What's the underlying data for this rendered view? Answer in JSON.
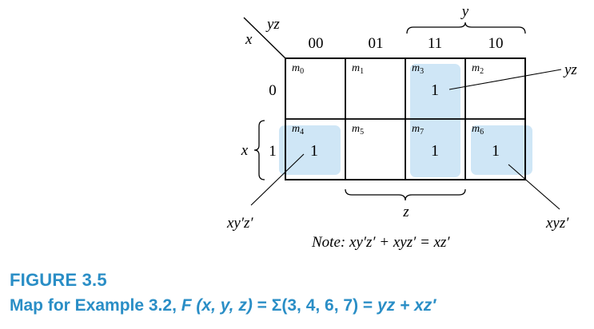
{
  "kmap": {
    "row_var": "x",
    "col_vars": "yz",
    "col_headers": [
      "00",
      "01",
      "11",
      "10"
    ],
    "row_headers": [
      "0",
      "1"
    ],
    "cells": [
      [
        {
          "minterm_main": "m",
          "minterm_sub": "0",
          "value": ""
        },
        {
          "minterm_main": "m",
          "minterm_sub": "1",
          "value": ""
        },
        {
          "minterm_main": "m",
          "minterm_sub": "3",
          "value": "1"
        },
        {
          "minterm_main": "m",
          "minterm_sub": "2",
          "value": ""
        }
      ],
      [
        {
          "minterm_main": "m",
          "minterm_sub": "4",
          "value": "1"
        },
        {
          "minterm_main": "m",
          "minterm_sub": "5",
          "value": ""
        },
        {
          "minterm_main": "m",
          "minterm_sub": "7",
          "value": "1"
        },
        {
          "minterm_main": "m",
          "minterm_sub": "6",
          "value": "1"
        }
      ]
    ],
    "brace_y_label": "y",
    "brace_z_label": "z",
    "brace_x_label": "x",
    "term_yz_label": "yz",
    "term_xyprimezprime_label": "xy′z′",
    "term_xyzprime_label": "xyz′",
    "note": "Note: xy′z′ + xyz′ = xz′",
    "highlight_color": "#cfe6f6"
  },
  "figure": {
    "label": "FIGURE 3.5",
    "caption_prefix": "Map for Example 3.2, ",
    "caption_func": "F (x, y, z)",
    "caption_mid": " = Σ(3, 4, 6, 7) = ",
    "caption_result": "yz + xz′",
    "caption_color": "#2a8ec6"
  }
}
